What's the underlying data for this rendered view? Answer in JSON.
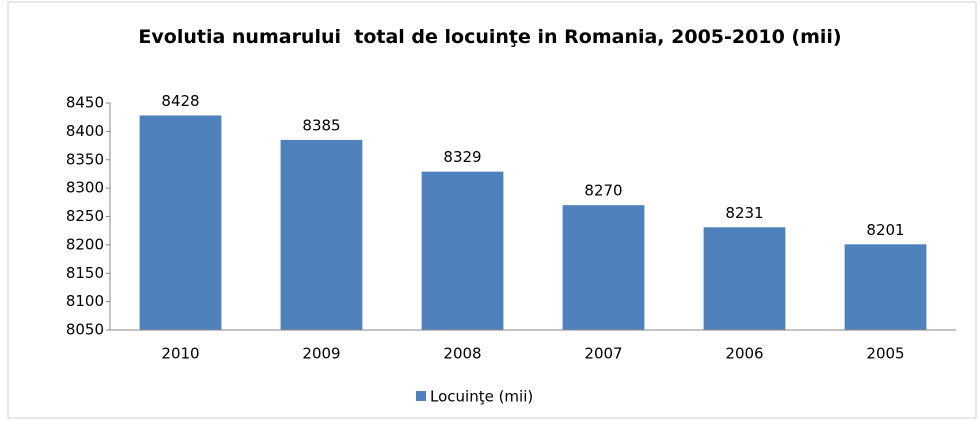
{
  "chart_data": {
    "type": "bar",
    "title": "Evolutia numarului  total de locuinţe in Romania, 2005-2010 (mii)",
    "categories": [
      "2010",
      "2009",
      "2008",
      "2007",
      "2006",
      "2005"
    ],
    "series": [
      {
        "name": "Locuinţe (mii)",
        "color": "#4f81bd",
        "values": [
          8428,
          8385,
          8329,
          8270,
          8231,
          8201
        ]
      }
    ],
    "ylim": [
      8050,
      8450
    ],
    "yticks": [
      8050,
      8100,
      8150,
      8200,
      8250,
      8300,
      8350,
      8400,
      8450
    ],
    "grid": false,
    "legend": "bottom"
  }
}
